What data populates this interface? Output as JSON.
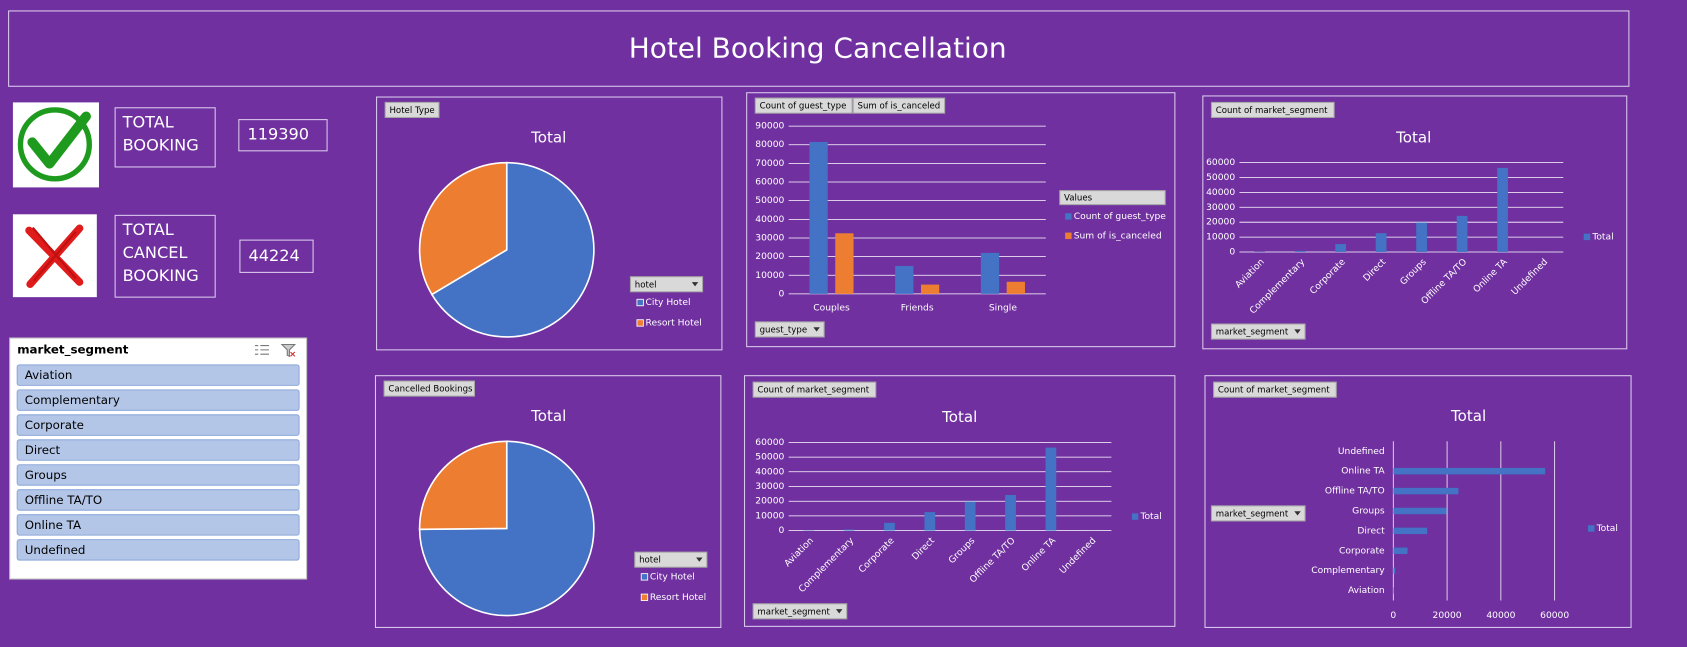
{
  "title": "Hotel Booking Cancellation",
  "kpis": [
    {
      "label_lines": [
        "TOTAL",
        "BOOKING"
      ],
      "value": 119390
    },
    {
      "label_lines": [
        "TOTAL",
        "CANCEL",
        "BOOKING"
      ],
      "value": 44224
    }
  ],
  "slicer": {
    "title": "market_segment",
    "items": [
      "Aviation",
      "Complementary",
      "Corporate",
      "Direct",
      "Groups",
      "Offline TA/TO",
      "Online TA",
      "Undefined"
    ]
  },
  "chart_data": [
    {
      "type": "pie",
      "button": "Hotel Type",
      "title": "Total",
      "legend_field": "hotel",
      "categories": [
        "City Hotel",
        "Resort Hotel"
      ],
      "values": [
        79330,
        40060
      ],
      "colors": [
        "#4472c4",
        "#ed7d31"
      ]
    },
    {
      "type": "bar",
      "axis_field": "guest_type",
      "legend_title": "Values",
      "categories": [
        "Couples",
        "Friends",
        "Single"
      ],
      "series": [
        {
          "name": "Count of guest_type",
          "color": "#4472c4",
          "values": [
            81500,
            15000,
            22000
          ]
        },
        {
          "name": "Sum of is_canceled",
          "color": "#ed7d31",
          "values": [
            32500,
            5000,
            6500
          ]
        }
      ],
      "ylim": [
        0,
        90000
      ],
      "yticks": [
        0,
        10000,
        20000,
        30000,
        40000,
        50000,
        60000,
        70000,
        80000,
        90000
      ],
      "grid": true
    },
    {
      "type": "bar",
      "button": "Count of market_segment",
      "title": "Total",
      "axis_field": "market_segment",
      "categories": [
        "Aviation",
        "Complementary",
        "Corporate",
        "Direct",
        "Groups",
        "Offline TA/TO",
        "Online TA",
        "Undefined"
      ],
      "series": [
        {
          "name": "Total",
          "color": "#4472c4",
          "values": [
            237,
            743,
            5295,
            12606,
            19811,
            24219,
            56477,
            2
          ]
        }
      ],
      "ylim": [
        0,
        60000
      ],
      "yticks": [
        0,
        10000,
        20000,
        30000,
        40000,
        50000,
        60000
      ],
      "grid": true
    },
    {
      "type": "pie",
      "button": "Cancelled Bookings",
      "title": "Total",
      "legend_field": "hotel",
      "categories": [
        "City Hotel",
        "Resort Hotel"
      ],
      "values": [
        33102,
        11122
      ],
      "colors": [
        "#4472c4",
        "#ed7d31"
      ]
    },
    {
      "type": "bar",
      "button": "Count of market_segment",
      "title": "Total",
      "axis_field": "market_segment",
      "categories": [
        "Aviation",
        "Complementary",
        "Corporate",
        "Direct",
        "Groups",
        "Offline TA/TO",
        "Online TA",
        "Undefined"
      ],
      "series": [
        {
          "name": "Total",
          "color": "#4472c4",
          "values": [
            237,
            743,
            5295,
            12606,
            19811,
            24219,
            56477,
            2
          ]
        }
      ],
      "ylim": [
        0,
        60000
      ],
      "yticks": [
        0,
        10000,
        20000,
        30000,
        40000,
        50000,
        60000
      ],
      "grid": true
    },
    {
      "type": "barh",
      "button": "Count of market_segment",
      "title": "Total",
      "axis_field": "market_segment",
      "categories": [
        "Aviation",
        "Complementary",
        "Corporate",
        "Direct",
        "Groups",
        "Offline TA/TO",
        "Online TA",
        "Undefined"
      ],
      "series": [
        {
          "name": "Total",
          "color": "#4472c4",
          "values": [
            237,
            743,
            5295,
            12606,
            19811,
            24219,
            56477,
            2
          ]
        }
      ],
      "xlim": [
        0,
        60000
      ],
      "xticks": [
        0,
        20000,
        40000,
        60000
      ],
      "grid": true
    }
  ]
}
